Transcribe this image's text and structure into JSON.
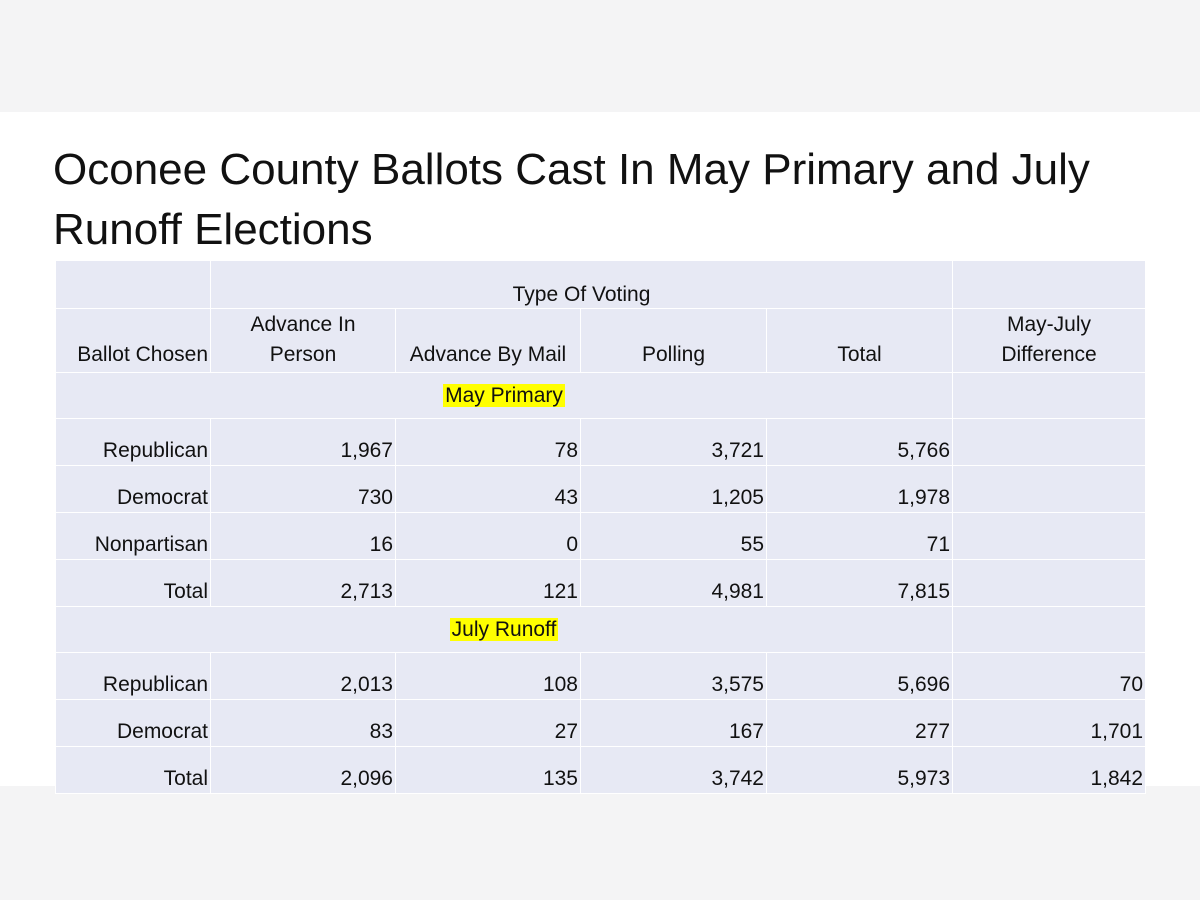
{
  "title": "Oconee County Ballots Cast In May Primary and July Runoff Elections",
  "table": {
    "group_header": "Type Of Voting",
    "columns": {
      "ballot": "Ballot Chosen",
      "advance_in_person_1": "Advance In",
      "advance_in_person_2": "Person",
      "advance_by_mail": "Advance By Mail",
      "polling": "Polling",
      "total": "Total",
      "difference_1": "May-July",
      "difference_2": "Difference"
    },
    "sections": [
      {
        "label": "May Primary",
        "rows": [
          {
            "ballot": "Republican",
            "in_person": "1,967",
            "mail": "78",
            "polling": "3,721",
            "total": "5,766",
            "difference": ""
          },
          {
            "ballot": "Democrat",
            "in_person": "730",
            "mail": "43",
            "polling": "1,205",
            "total": "1,978",
            "difference": ""
          },
          {
            "ballot": "Nonpartisan",
            "in_person": "16",
            "mail": "0",
            "polling": "55",
            "total": "71",
            "difference": ""
          },
          {
            "ballot": "Total",
            "in_person": "2,713",
            "mail": "121",
            "polling": "4,981",
            "total": "7,815",
            "difference": ""
          }
        ]
      },
      {
        "label": "July Runoff",
        "rows": [
          {
            "ballot": "Republican",
            "in_person": "2,013",
            "mail": "108",
            "polling": "3,575",
            "total": "5,696",
            "difference": "70"
          },
          {
            "ballot": "Democrat",
            "in_person": "83",
            "mail": "27",
            "polling": "167",
            "total": "277",
            "difference": "1,701"
          },
          {
            "ballot": "Total",
            "in_person": "2,096",
            "mail": "135",
            "polling": "3,742",
            "total": "5,973",
            "difference": "1,842"
          }
        ]
      }
    ],
    "highlight_color": "#ffff00",
    "cell_color": "#e7e9f4"
  }
}
